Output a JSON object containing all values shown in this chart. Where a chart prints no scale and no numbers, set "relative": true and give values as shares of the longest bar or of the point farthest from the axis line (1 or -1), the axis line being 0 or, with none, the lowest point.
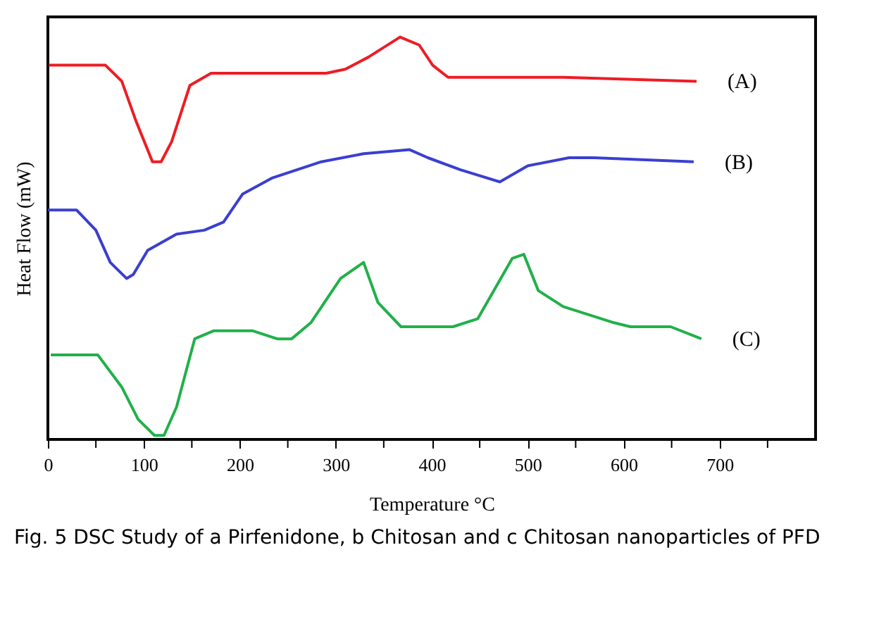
{
  "chart_data": {
    "type": "line",
    "relative": true,
    "xlabel": "Temperature °C",
    "ylabel": "Heat Flow (mW)",
    "xlim": [
      0,
      800
    ],
    "xticks": [
      0,
      {
        "value": 50,
        "label": null
      },
      100,
      {
        "value": 150,
        "label": null
      },
      200,
      {
        "value": 250,
        "label": null
      },
      300,
      {
        "value": 350,
        "label": null
      },
      400,
      {
        "value": 450,
        "label": null
      },
      500,
      {
        "value": 550,
        "label": null
      },
      600,
      {
        "value": 650,
        "label": null
      },
      700,
      {
        "value": 750,
        "label": null
      }
    ],
    "grid": false,
    "legend": false,
    "marker": "none",
    "line_style": "solid",
    "annotations": [
      "Fig. 5  DSC Study of a Pirfenidone, b Chitosan and c Chitosan nanoparticles of PFD"
    ],
    "series": [
      {
        "name": "(A)",
        "color": "#ee1c24",
        "x": [
          1,
          60,
          77,
          92,
          109,
          118,
          129,
          148,
          170,
          290,
          310,
          334,
          367,
          387,
          401,
          417,
          537,
          676
        ],
        "values": [
          0.93,
          0.93,
          0.89,
          0.79,
          0.69,
          0.69,
          0.74,
          0.88,
          0.91,
          0.91,
          0.92,
          0.95,
          1.0,
          0.98,
          0.93,
          0.9,
          0.9,
          0.89
        ]
      },
      {
        "name": "(B)",
        "color": "#3a3fd0",
        "x": [
          0,
          30,
          50,
          65,
          82,
          89,
          104,
          134,
          163,
          183,
          203,
          234,
          285,
          329,
          377,
          396,
          430,
          471,
          500,
          543,
          569,
          673
        ],
        "values": [
          0.57,
          0.57,
          0.52,
          0.44,
          0.4,
          0.41,
          0.47,
          0.51,
          0.52,
          0.54,
          0.61,
          0.65,
          0.69,
          0.71,
          0.72,
          0.7,
          0.67,
          0.64,
          0.68,
          0.7,
          0.7,
          0.69
        ]
      },
      {
        "name": "(C)",
        "color": "#22b04a",
        "x": [
          3,
          52,
          77,
          94,
          111,
          121,
          134,
          153,
          173,
          213,
          239,
          254,
          274,
          305,
          329,
          344,
          368,
          422,
          448,
          484,
          496,
          511,
          537,
          590,
          607,
          649,
          681
        ],
        "values": [
          0.21,
          0.21,
          0.13,
          0.05,
          0.01,
          0.01,
          0.08,
          0.25,
          0.27,
          0.27,
          0.25,
          0.25,
          0.29,
          0.4,
          0.44,
          0.34,
          0.28,
          0.28,
          0.3,
          0.45,
          0.46,
          0.37,
          0.33,
          0.29,
          0.28,
          0.28,
          0.25
        ]
      }
    ]
  }
}
